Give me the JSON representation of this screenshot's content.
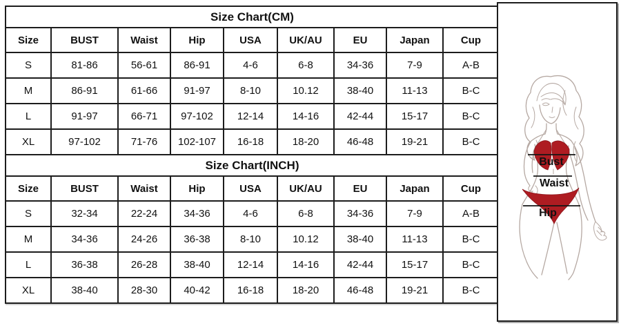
{
  "page": {
    "background": "#ffffff",
    "border_color": "#1c1c1c"
  },
  "tables": [
    {
      "title": "Size Chart(CM)",
      "columns": [
        "Size",
        "BUST",
        "Waist",
        "Hip",
        "USA",
        "UK/AU",
        "EU",
        "Japan",
        "Cup"
      ],
      "rows": [
        [
          "S",
          "81-86",
          "56-61",
          "86-91",
          "4-6",
          "6-8",
          "34-36",
          "7-9",
          "A-B"
        ],
        [
          "M",
          "86-91",
          "61-66",
          "91-97",
          "8-10",
          "10.12",
          "38-40",
          "11-13",
          "B-C"
        ],
        [
          "L",
          "91-97",
          "66-71",
          "97-102",
          "12-14",
          "14-16",
          "42-44",
          "15-17",
          "B-C"
        ],
        [
          "XL",
          "97-102",
          "71-76",
          "102-107",
          "16-18",
          "18-20",
          "46-48",
          "19-21",
          "B-C"
        ]
      ]
    },
    {
      "title": "Size Chart(INCH)",
      "columns": [
        "Size",
        "BUST",
        "Waist",
        "Hip",
        "USA",
        "UK/AU",
        "EU",
        "Japan",
        "Cup"
      ],
      "rows": [
        [
          "S",
          "32-34",
          "22-24",
          "34-36",
          "4-6",
          "6-8",
          "34-36",
          "7-9",
          "A-B"
        ],
        [
          "M",
          "34-36",
          "24-26",
          "36-38",
          "8-10",
          "10.12",
          "38-40",
          "11-13",
          "B-C"
        ],
        [
          "L",
          "36-38",
          "26-28",
          "38-40",
          "12-14",
          "14-16",
          "42-44",
          "15-17",
          "B-C"
        ],
        [
          "XL",
          "38-40",
          "28-30",
          "40-42",
          "16-18",
          "18-20",
          "46-48",
          "19-21",
          "B-C"
        ]
      ]
    }
  ],
  "figure": {
    "labels": {
      "bust": "Bust",
      "waist": "Waist",
      "hip": "Hip"
    },
    "colors": {
      "bikini_red": "#ae1c22",
      "line_art": "#b5a8a2",
      "label_text": "#111111",
      "measure_line": "#151515",
      "border": "#1c1c1c"
    }
  }
}
